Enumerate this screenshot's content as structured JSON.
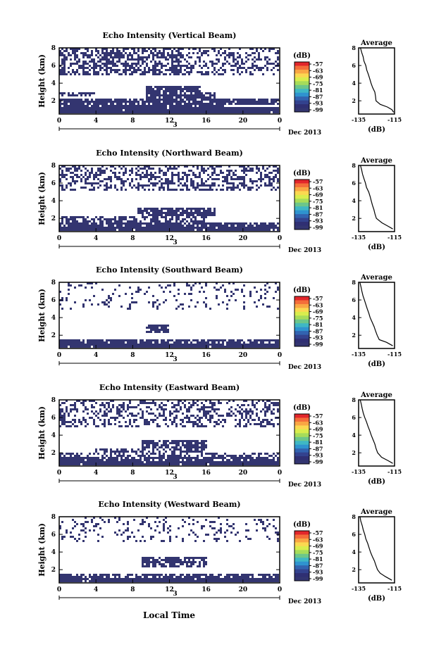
{
  "figure": {
    "xlabel": "Local Time",
    "colorbar_unit": "(dB)",
    "colorbar_ticks": [
      "-57",
      "-63",
      "-69",
      "-75",
      "-81",
      "-87",
      "-93",
      "-99"
    ],
    "colorbar_colors": [
      "#e2262b",
      "#f46d3a",
      "#f9a644",
      "#fbd851",
      "#d9ed4d",
      "#a6dc5a",
      "#6cc68a",
      "#3fb7c4",
      "#2f93cf",
      "#3263b0",
      "#33428e",
      "#2f2f73",
      "#333570"
    ],
    "date_label": "Dec 2013",
    "day_label": "3",
    "time_ticks": [
      "0",
      "4",
      "8",
      "12",
      "16",
      "20",
      "0"
    ],
    "height_ticks": [
      "2",
      "4",
      "6",
      "8"
    ],
    "ylabel": "Height (km)",
    "avg_title": "Average",
    "avg_xticks": [
      "-135",
      "-115"
    ],
    "avg_xlabel": "(dB)",
    "echo_color": "#333570"
  },
  "chart_data": [
    {
      "type": "heatmap",
      "title": "Echo Intensity (Vertical Beam)",
      "x_unit": "hour",
      "y_unit": "km",
      "xlim": [
        0,
        24
      ],
      "ylim": [
        0.5,
        8
      ],
      "echo_bands": [
        {
          "y": [
            0.5,
            1.2
          ],
          "x": [
            0,
            24
          ],
          "density": 0.98
        },
        {
          "y": [
            1.2,
            1.6
          ],
          "x": [
            0,
            18
          ],
          "density": 0.9
        },
        {
          "y": [
            1.6,
            2.2
          ],
          "x": [
            0,
            24
          ],
          "density": 0.85
        },
        {
          "y": [
            2.2,
            3.0
          ],
          "x": [
            9.5,
            17
          ],
          "density": 0.85
        },
        {
          "y": [
            2.4,
            2.9
          ],
          "x": [
            0,
            4
          ],
          "density": 0.7
        },
        {
          "y": [
            3.0,
            3.6
          ],
          "x": [
            9.5,
            15.5
          ],
          "density": 0.9
        },
        {
          "y": [
            5.0,
            8.0
          ],
          "x": [
            0,
            14
          ],
          "density": 0.55
        },
        {
          "y": [
            5.0,
            8.0
          ],
          "x": [
            14,
            24
          ],
          "density": 0.35
        }
      ],
      "average_profile": {
        "xlim": [
          -135,
          -115
        ],
        "ylim": [
          0.5,
          8
        ],
        "points": [
          [
            -134.0,
            8.0
          ],
          [
            -133.3,
            7.5
          ],
          [
            -132.5,
            7.0
          ],
          [
            -132.0,
            6.5
          ],
          [
            -131.0,
            6.0
          ],
          [
            -130.5,
            5.5
          ],
          [
            -129.6,
            5.0
          ],
          [
            -128.8,
            4.5
          ],
          [
            -128.1,
            4.0
          ],
          [
            -127.2,
            3.5
          ],
          [
            -126.0,
            3.0
          ],
          [
            -125.6,
            2.5
          ],
          [
            -125.3,
            2.0
          ],
          [
            -123.0,
            1.6
          ],
          [
            -119.0,
            1.3
          ],
          [
            -116.5,
            1.0
          ],
          [
            -115.5,
            0.7
          ]
        ]
      }
    },
    {
      "type": "heatmap",
      "title": "Echo Intensity (Northward Beam)",
      "x_unit": "hour",
      "y_unit": "km",
      "xlim": [
        0,
        24
      ],
      "ylim": [
        0.5,
        8
      ],
      "echo_bands": [
        {
          "y": [
            0.5,
            1.1
          ],
          "x": [
            0,
            24
          ],
          "density": 0.98
        },
        {
          "y": [
            1.1,
            1.6
          ],
          "x": [
            0,
            24
          ],
          "density": 0.85
        },
        {
          "y": [
            1.6,
            2.3
          ],
          "x": [
            0,
            16
          ],
          "density": 0.6
        },
        {
          "y": [
            2.2,
            3.3
          ],
          "x": [
            8.5,
            17
          ],
          "density": 0.85
        },
        {
          "y": [
            5.2,
            8.0
          ],
          "x": [
            0,
            24
          ],
          "density": 0.45
        }
      ],
      "average_profile": {
        "xlim": [
          -135,
          -115
        ],
        "ylim": [
          0.5,
          8
        ],
        "points": [
          [
            -134.0,
            8.0
          ],
          [
            -133.3,
            7.5
          ],
          [
            -132.8,
            7.0
          ],
          [
            -132.0,
            6.5
          ],
          [
            -131.2,
            6.0
          ],
          [
            -130.6,
            5.5
          ],
          [
            -129.4,
            5.0
          ],
          [
            -128.6,
            4.5
          ],
          [
            -128.0,
            4.0
          ],
          [
            -127.3,
            3.5
          ],
          [
            -126.5,
            3.0
          ],
          [
            -125.9,
            2.5
          ],
          [
            -125.1,
            2.0
          ],
          [
            -122.0,
            1.5
          ],
          [
            -118.5,
            1.1
          ],
          [
            -116.0,
            0.8
          ]
        ]
      }
    },
    {
      "type": "heatmap",
      "title": "Echo Intensity (Southward Beam)",
      "x_unit": "hour",
      "y_unit": "km",
      "xlim": [
        0,
        24
      ],
      "ylim": [
        0.5,
        8
      ],
      "echo_bands": [
        {
          "y": [
            0.5,
            1.0
          ],
          "x": [
            0,
            24
          ],
          "density": 0.98
        },
        {
          "y": [
            1.0,
            1.5
          ],
          "x": [
            0,
            24
          ],
          "density": 0.8
        },
        {
          "y": [
            2.3,
            3.3
          ],
          "x": [
            9.5,
            12
          ],
          "density": 0.8
        },
        {
          "y": [
            5.0,
            8.0
          ],
          "x": [
            0,
            24
          ],
          "density": 0.15
        }
      ],
      "average_profile": {
        "xlim": [
          -135,
          -115
        ],
        "ylim": [
          0.5,
          8
        ],
        "points": [
          [
            -134.3,
            8.0
          ],
          [
            -133.7,
            7.5
          ],
          [
            -133.2,
            7.0
          ],
          [
            -132.6,
            6.5
          ],
          [
            -131.8,
            6.0
          ],
          [
            -131.0,
            5.5
          ],
          [
            -130.2,
            5.0
          ],
          [
            -129.3,
            4.5
          ],
          [
            -128.6,
            4.0
          ],
          [
            -127.5,
            3.5
          ],
          [
            -126.4,
            3.0
          ],
          [
            -125.6,
            2.5
          ],
          [
            -124.7,
            2.0
          ],
          [
            -123.5,
            1.5
          ],
          [
            -119.5,
            1.2
          ],
          [
            -116.0,
            0.8
          ]
        ]
      }
    },
    {
      "type": "heatmap",
      "title": "Echo Intensity (Eastward Beam)",
      "x_unit": "hour",
      "y_unit": "km",
      "xlim": [
        0,
        24
      ],
      "ylim": [
        0.5,
        8
      ],
      "echo_bands": [
        {
          "y": [
            0.5,
            1.1
          ],
          "x": [
            0,
            24
          ],
          "density": 0.98
        },
        {
          "y": [
            1.1,
            1.6
          ],
          "x": [
            0,
            24
          ],
          "density": 0.8
        },
        {
          "y": [
            1.6,
            2.0
          ],
          "x": [
            0,
            24
          ],
          "density": 0.5
        },
        {
          "y": [
            2.0,
            2.6
          ],
          "x": [
            4,
            16
          ],
          "density": 0.6
        },
        {
          "y": [
            2.6,
            3.4
          ],
          "x": [
            9,
            16
          ],
          "density": 0.8
        },
        {
          "y": [
            5.0,
            8.0
          ],
          "x": [
            0,
            24
          ],
          "density": 0.4
        }
      ],
      "average_profile": {
        "xlim": [
          -135,
          -115
        ],
        "ylim": [
          0.5,
          8
        ],
        "points": [
          [
            -134.1,
            8.0
          ],
          [
            -133.5,
            7.5
          ],
          [
            -133.0,
            7.0
          ],
          [
            -132.4,
            6.5
          ],
          [
            -131.6,
            6.0
          ],
          [
            -130.6,
            5.5
          ],
          [
            -129.8,
            5.0
          ],
          [
            -128.8,
            4.5
          ],
          [
            -128.0,
            4.0
          ],
          [
            -127.0,
            3.5
          ],
          [
            -126.0,
            3.0
          ],
          [
            -125.3,
            2.5
          ],
          [
            -124.4,
            2.0
          ],
          [
            -122.2,
            1.5
          ],
          [
            -118.5,
            1.1
          ],
          [
            -116.0,
            0.8
          ]
        ]
      }
    },
    {
      "type": "heatmap",
      "title": "Echo Intensity (Westward Beam)",
      "x_unit": "hour",
      "y_unit": "km",
      "xlim": [
        0,
        24
      ],
      "ylim": [
        0.5,
        8
      ],
      "echo_bands": [
        {
          "y": [
            0.5,
            1.1
          ],
          "x": [
            0,
            24
          ],
          "density": 0.98
        },
        {
          "y": [
            1.1,
            1.6
          ],
          "x": [
            0,
            24
          ],
          "density": 0.75
        },
        {
          "y": [
            2.2,
            3.4
          ],
          "x": [
            9,
            16
          ],
          "density": 0.75
        },
        {
          "y": [
            5.2,
            8.0
          ],
          "x": [
            0,
            24
          ],
          "density": 0.15
        }
      ],
      "average_profile": {
        "xlim": [
          -135,
          -115
        ],
        "ylim": [
          0.5,
          8
        ],
        "points": [
          [
            -134.2,
            8.0
          ],
          [
            -133.8,
            7.5
          ],
          [
            -133.0,
            7.0
          ],
          [
            -132.4,
            6.5
          ],
          [
            -131.6,
            6.0
          ],
          [
            -131.0,
            5.5
          ],
          [
            -130.0,
            5.0
          ],
          [
            -129.2,
            4.5
          ],
          [
            -128.4,
            4.0
          ],
          [
            -127.4,
            3.5
          ],
          [
            -126.2,
            3.0
          ],
          [
            -125.4,
            2.5
          ],
          [
            -124.5,
            2.0
          ],
          [
            -123.0,
            1.6
          ],
          [
            -120.0,
            1.2
          ],
          [
            -116.5,
            0.8
          ]
        ]
      }
    }
  ]
}
